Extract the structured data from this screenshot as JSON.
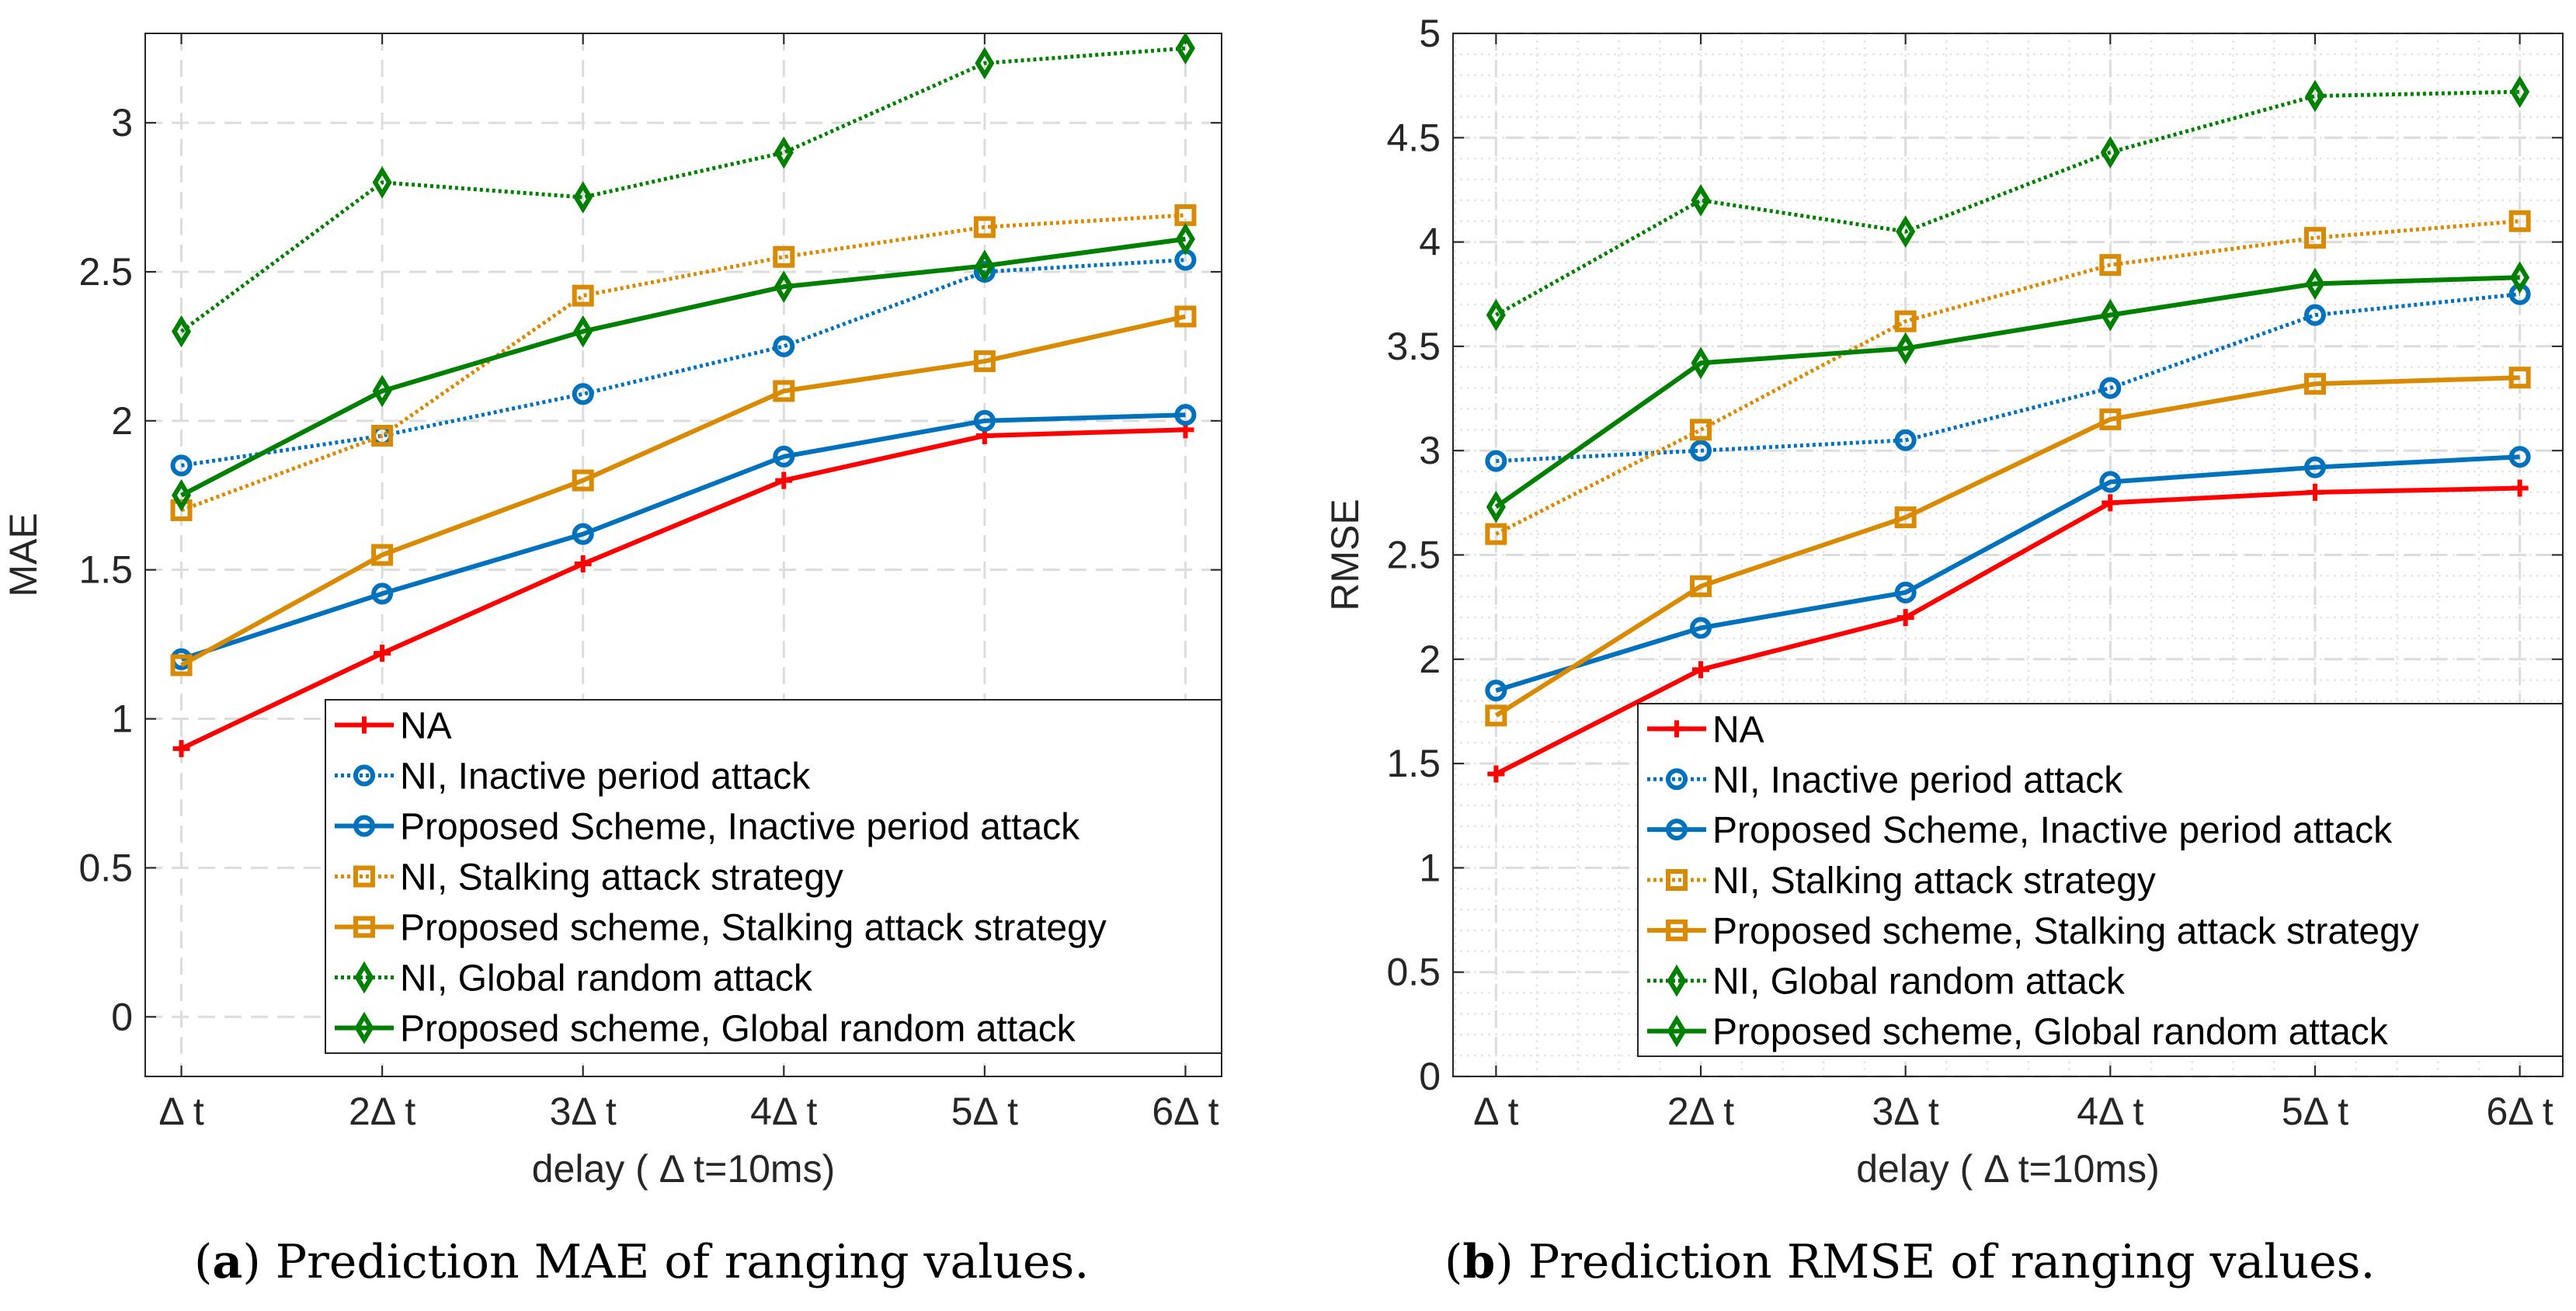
{
  "chart_data": [
    {
      "type": "line",
      "id": "a",
      "caption_label": "a",
      "caption_text": "Prediction MAE of ranging values.",
      "xlabel": "delay ( Δ t=10ms)",
      "ylabel": "MAE",
      "categories": [
        "Δ t",
        "2Δ t",
        "3Δ t",
        "4Δ t",
        "5Δ t",
        "6Δ t"
      ],
      "ylim": [
        -0.2,
        3.3
      ],
      "yticks": [
        0,
        0.5,
        1,
        1.5,
        2,
        2.5,
        3
      ],
      "ytick_labels": [
        "0",
        "0.5",
        "1",
        "1.5",
        "2",
        "2.5",
        "3"
      ],
      "minor_grid": false,
      "legend_position": "bottom-right",
      "series": [
        {
          "name": "NA",
          "color": "#ff0000",
          "style": "solid",
          "marker": "plus",
          "values": [
            0.9,
            1.22,
            1.52,
            1.8,
            1.95,
            1.97
          ]
        },
        {
          "name": "NI, Inactive period attack",
          "color": "#0072bd",
          "style": "dotted",
          "marker": "circle",
          "values": [
            1.85,
            1.95,
            2.09,
            2.25,
            2.5,
            2.54
          ]
        },
        {
          "name": "Proposed Scheme, Inactive period attack",
          "color": "#0072bd",
          "style": "solid",
          "marker": "circle",
          "values": [
            1.2,
            1.42,
            1.62,
            1.88,
            2.0,
            2.02
          ]
        },
        {
          "name": "NI, Stalking attack strategy",
          "color": "#d98a00",
          "style": "dotted",
          "marker": "square",
          "values": [
            1.7,
            1.95,
            2.42,
            2.55,
            2.65,
            2.69
          ]
        },
        {
          "name": "Proposed scheme, Stalking attack strategy",
          "color": "#d98a00",
          "style": "solid",
          "marker": "square",
          "values": [
            1.18,
            1.55,
            1.8,
            2.1,
            2.2,
            2.35
          ]
        },
        {
          "name": "NI, Global random attack",
          "color": "#008000",
          "style": "dotted",
          "marker": "diamond",
          "values": [
            2.3,
            2.8,
            2.75,
            2.9,
            3.2,
            3.25
          ]
        },
        {
          "name": "Proposed scheme, Global random attack",
          "color": "#008000",
          "style": "solid",
          "marker": "diamond",
          "values": [
            1.75,
            2.1,
            2.3,
            2.45,
            2.52,
            2.61
          ]
        }
      ]
    },
    {
      "type": "line",
      "id": "b",
      "caption_label": "b",
      "caption_text": "Prediction RMSE of ranging values.",
      "xlabel": "delay ( Δ t=10ms)",
      "ylabel": "RMSE",
      "categories": [
        "Δ t",
        "2Δ t",
        "3Δ t",
        "4Δ t",
        "5Δ t",
        "6Δ t"
      ],
      "ylim": [
        0,
        5
      ],
      "yticks": [
        0,
        0.5,
        1,
        1.5,
        2,
        2.5,
        3,
        3.5,
        4,
        4.5,
        5
      ],
      "ytick_labels": [
        "0",
        "0.5",
        "1",
        "1.5",
        "2",
        "2.5",
        "3",
        "3.5",
        "4",
        "4.5",
        "5"
      ],
      "minor_grid": true,
      "legend_position": "bottom-right",
      "series": [
        {
          "name": "NA",
          "color": "#ff0000",
          "style": "solid",
          "marker": "plus",
          "values": [
            1.45,
            1.95,
            2.2,
            2.75,
            2.8,
            2.82
          ]
        },
        {
          "name": "NI, Inactive period attack",
          "color": "#0072bd",
          "style": "dotted",
          "marker": "circle",
          "values": [
            2.95,
            3.0,
            3.05,
            3.3,
            3.65,
            3.75
          ]
        },
        {
          "name": "Proposed Scheme, Inactive period attack",
          "color": "#0072bd",
          "style": "solid",
          "marker": "circle",
          "values": [
            1.85,
            2.15,
            2.32,
            2.85,
            2.92,
            2.97
          ]
        },
        {
          "name": "NI, Stalking attack strategy",
          "color": "#d98a00",
          "style": "dotted",
          "marker": "square",
          "values": [
            2.6,
            3.1,
            3.62,
            3.89,
            4.02,
            4.1
          ]
        },
        {
          "name": "Proposed scheme, Stalking attack strategy",
          "color": "#d98a00",
          "style": "solid",
          "marker": "square",
          "values": [
            1.73,
            2.35,
            2.68,
            3.15,
            3.32,
            3.35
          ]
        },
        {
          "name": "NI, Global random attack",
          "color": "#008000",
          "style": "dotted",
          "marker": "diamond",
          "values": [
            3.65,
            4.2,
            4.05,
            4.43,
            4.7,
            4.72
          ]
        },
        {
          "name": "Proposed scheme, Global random attack",
          "color": "#008000",
          "style": "solid",
          "marker": "diamond",
          "values": [
            2.73,
            3.42,
            3.49,
            3.65,
            3.8,
            3.83
          ]
        }
      ]
    }
  ]
}
